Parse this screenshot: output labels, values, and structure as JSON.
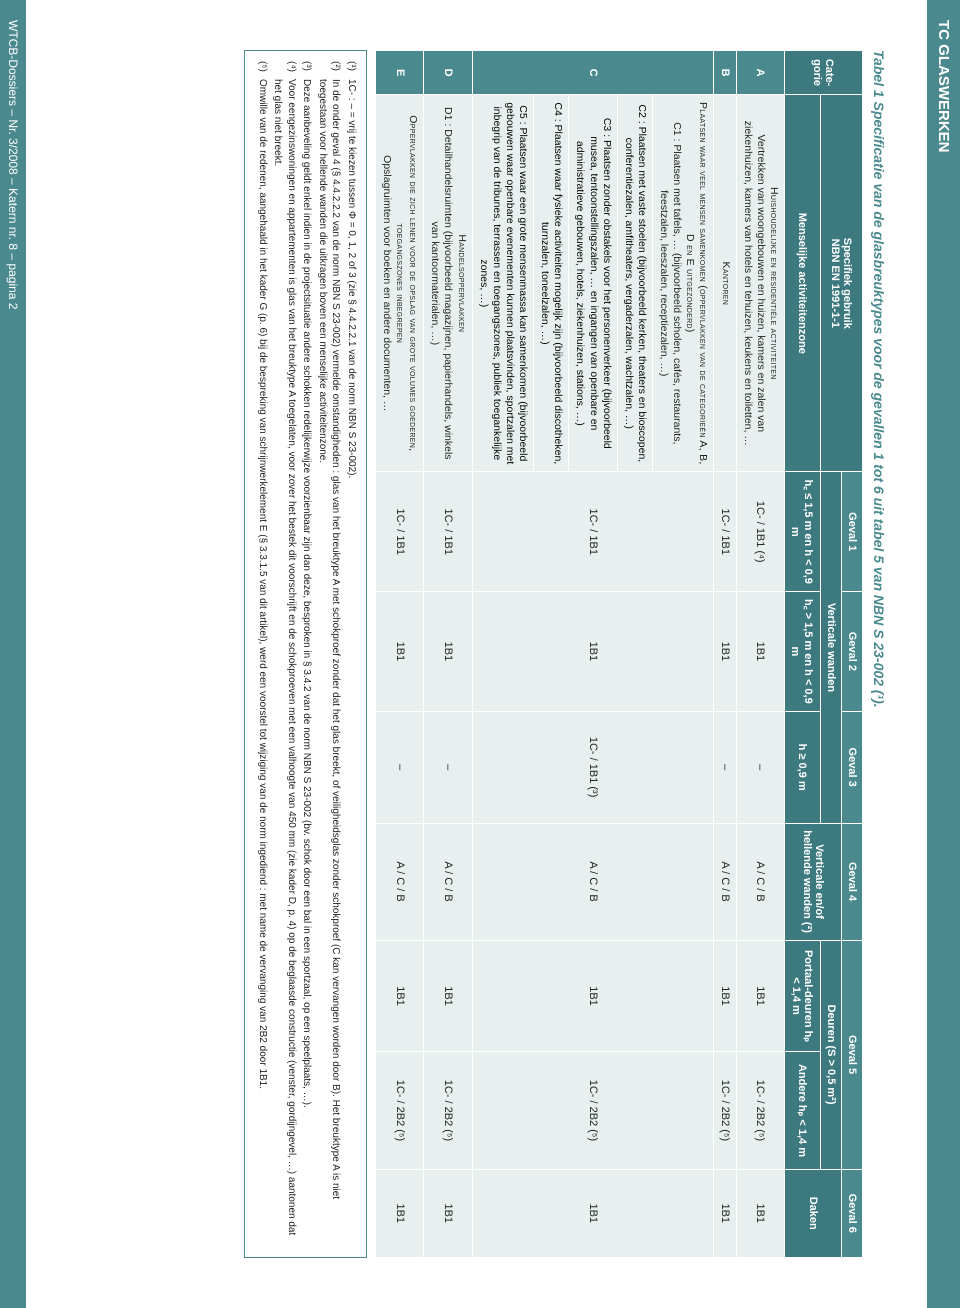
{
  "header": {
    "title": "TC GLASWERKEN"
  },
  "table": {
    "caption": "Tabel 1 Specificatie van de glasbreuktypes voor de gevallen 1 tot 6 uit tabel 5 van NBN S 23-002 (¹).",
    "head": {
      "categorie": "Cate-gorie",
      "spec_line1": "Specifiek gebruik",
      "spec_line2": "NBN EN 1991-1-1",
      "spec_line3": "Menselijke activiteitenzone",
      "geval1": "Geval 1",
      "geval2": "Geval 2",
      "geval3": "Geval 3",
      "geval4": "Geval 4",
      "geval5": "Geval 5",
      "geval6": "Geval 6",
      "vert_wanden": "Verticale wanden",
      "verticale": "Verticale en/of hellende wanden (²)",
      "deuren": "Deuren (S > 0,5 m²)",
      "daken": "Daken",
      "sub_g1": "h꜀ ≤ 1,5 m en h < 0,9 m",
      "sub_g2": "h꜀ > 1,5 m en h < 0,9 m",
      "sub_g3": "h ≥ 0,9 m",
      "sub_g5a": "Portaal-deuren hₚ < 1,4 m",
      "sub_g5b": "Andere hₚ < 1,4 m"
    },
    "rows": [
      {
        "cat": "A",
        "desc_title": "Huishoudelijke en residentiële activiteiten",
        "desc": "Vertrekken van woongebouwen en huizen, kamers en zalen van ziekenhuizen, kamers van hotels en tehuizen, keukens en toiletten, …",
        "g1": "1C- / 1B1 (⁴)",
        "g2": "1B1",
        "g3": "–",
        "g4": "A / C / B",
        "g5a": "1B1",
        "g5b": "1C- / 2B2 (⁵)",
        "g6": "1B1"
      },
      {
        "cat": "B",
        "desc_title": "Kantoren",
        "desc": "",
        "g1": "1C- / 1B1",
        "g2": "1B1",
        "g3": "–",
        "g4": "A / C / B",
        "g5a": "1B1",
        "g5b": "1C- / 2B2 (⁵)",
        "g6": "1B1"
      },
      {
        "cat": "C",
        "subs": [
          {
            "title": "Plaatsen waar veel mensen samenkomen (oppervlakken van de categorieën A, B, D en E uitgezonderd)",
            "text": "C1 : Plaatsen met tafels, … (bijvoorbeeld scholen, cafés, restaurants, feestzalen, leeszalen, receptiezalen, …)"
          },
          {
            "title": "",
            "text": "C2 : Plaatsen met vaste stoelen (bijvoorbeeld kerken, theaters en bioscopen, conferentiezalen, amfitheaters, vergaderzalen, wachtzalen, …)"
          },
          {
            "title": "",
            "text": "C3 : Plaatsen zonder obstakels voor het personenverkeer (bijvoorbeeld musea, tentoonstellingszalen, … en ingangen van openbare en administratieve gebouwen, hotels, ziekenhuizen, stations, …)"
          },
          {
            "title": "",
            "text": "C4 : Plaatsen waar fysieke activiteiten mogelijk zijn (bijvoorbeeld discotheken, turnzalen, toneelzalen, …)"
          },
          {
            "title": "",
            "text": "C5 : Plaatsen waar een grote mensenmassa kan samenkomen (bijvoorbeeld gebouwen waar openbare evenementen kunnen plaatsvinden, sportzalen met inbegrip van de tribunes, terrassen en toegangszones, publiek toegankelijke zones, …)"
          }
        ],
        "g1": "1C- / 1B1",
        "g2": "1B1",
        "g3": "1C- / 1B1 (³)",
        "g4": "A / C / B",
        "g5a": "1B1",
        "g5b": "1C- / 2B2 (⁵)",
        "g6": "1B1"
      },
      {
        "cat": "D",
        "desc_title": "Handelsoppervlakken",
        "desc": "D1 : Detailhandelsruimten (bijvoorbeeld magazijnen, papierhandels, winkels van kantoormaterialen, …)",
        "g1": "1C- / 1B1",
        "g2": "1B1",
        "g3": "–",
        "g4": "A / C / B",
        "g5a": "1B1",
        "g5b": "1C- / 2B2 (⁵)",
        "g6": "1B1"
      },
      {
        "cat": "E",
        "desc_title": "Oppervlakken die zich lenen voor de opslag van grote volumes goederen, toegangszones inbegrepen",
        "desc": "Opslagruimten voor boeken en andere documenten, …",
        "g1": "1C- / 1B1",
        "g2": "1B1",
        "g3": "–",
        "g4": "A / C / B",
        "g5a": "1B1",
        "g5b": "1C- / 2B2 (⁵)",
        "g6": "1B1"
      }
    ]
  },
  "notes": [
    {
      "sup": "(¹)",
      "text": "1C- : – = vrij te kiezen tussen Φ = 0, 1, 2 of 3 (zie § 4.4.2.2.1 van de norm NBN S 23-002)."
    },
    {
      "sup": "(²)",
      "text": "In de onder geval 4 (§ 4.4.2.2.2 van de norm NBN S 23-002) vermelde omstandigheden : glas van het breuktype A met schokproef zonder dat het glas breekt, of veiligheidsglas zonder schokproef (C kan vervangen worden door B). Het breuktype A is niet toegestaan voor hellende wanden die uitkragen boven een menselijke activiteitenzone."
    },
    {
      "sup": "(³)",
      "text": "Deze aanbeveling geldt enkel indien in de projectsituatie andere schokken redelijkerwijze voorzienbaar zijn dan deze, besproken in § 3.4.2 van de norm NBN S 23-002 (bv. schok door een bal in een sportzaal, op een speelplaats, …)."
    },
    {
      "sup": "(⁴)",
      "text": "Voor eengezinswoningen en appartementen is glas van het breuktype A toegelaten, voor zover het bestek dit voorschrijft en de schokproeven met een valhoogte van 450 mm (zie kader D, p. 4) op de beglaasde constructie (venster, gordijngevel, …) aantonen dat het glas niet breekt."
    },
    {
      "sup": "(⁵)",
      "text": "Omwille van de redenen, aangehaald in het kader G (p. 6) bij de bespreking van schrijnwerkelement E (§ 3.3.1.5 van dit artikel), werd een voorstel tot wijziging van de norm ingediend : met name de vervanging van 2B2 door 1B1."
    }
  ],
  "footer": {
    "text": "WTCB-Dossiers – Nr. 3/2008 – Katern nr. 8 – pagina 2"
  },
  "colors": {
    "teal": "#4a8a8f",
    "teal_dark": "#3d7a7f",
    "light": "#e8f0ef",
    "white": "#ffffff"
  }
}
